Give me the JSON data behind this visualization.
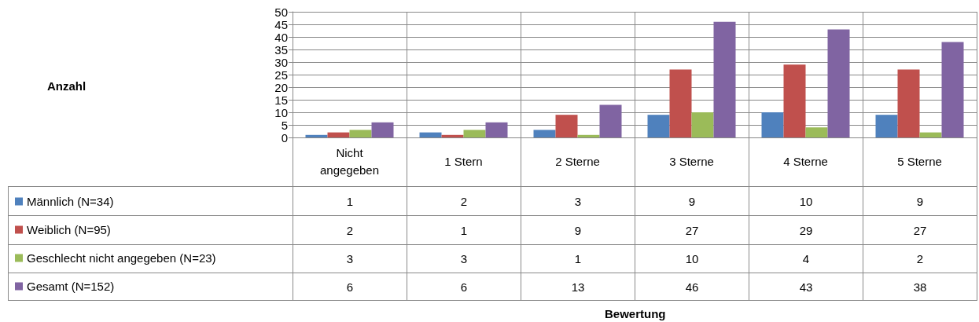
{
  "chart_data": {
    "type": "bar",
    "annotations": [
      "Anzahl",
      "Bewertung"
    ],
    "categories": [
      "Nicht\nangegeben",
      "1 Stern",
      "2 Sterne",
      "3 Sterne",
      "4 Sterne",
      "5 Sterne"
    ],
    "series": [
      {
        "name": "Männlich (N=34)",
        "color": "#4f81bd",
        "values": [
          1,
          2,
          3,
          9,
          10,
          9
        ]
      },
      {
        "name": "Weiblich (N=95)",
        "color": "#c0504d",
        "values": [
          2,
          1,
          9,
          27,
          29,
          27
        ]
      },
      {
        "name": "Geschlecht nicht angegeben (N=23)",
        "color": "#9bbb59",
        "values": [
          3,
          3,
          1,
          10,
          4,
          2
        ]
      },
      {
        "name": "Gesamt (N=152)",
        "color": "#8064a2",
        "values": [
          6,
          6,
          13,
          46,
          43,
          38
        ]
      }
    ],
    "ylim": [
      0,
      50
    ],
    "yticks": [
      0,
      5,
      10,
      15,
      20,
      25,
      30,
      35,
      40,
      45,
      50
    ],
    "grid": "y",
    "legend": "bottom left",
    "data_labels": true
  }
}
